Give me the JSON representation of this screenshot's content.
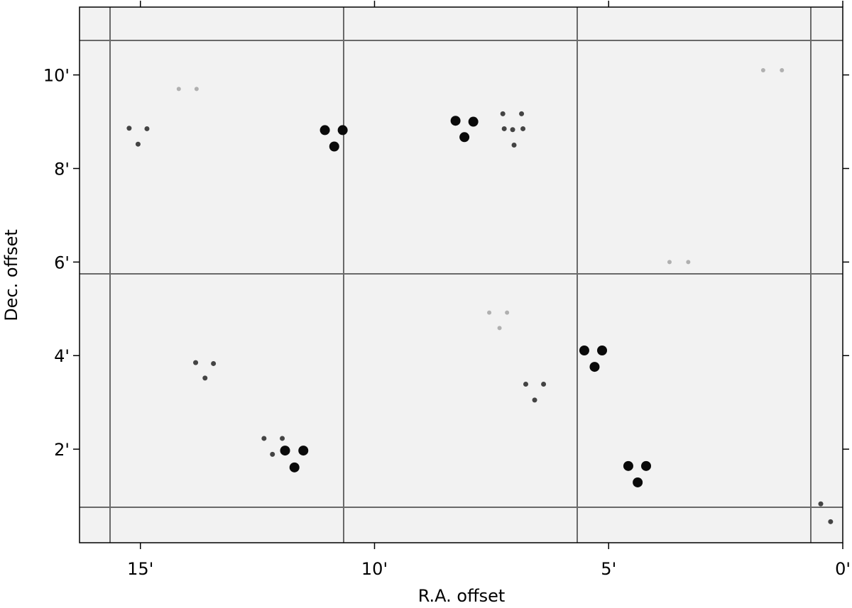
{
  "chart_data": {
    "type": "scatter",
    "x_label": "R.A. offset",
    "y_label": "Dec. offset",
    "xlim": [
      16.3,
      0
    ],
    "ylim": [
      0,
      11.45
    ],
    "xticks": [
      {
        "value": 15,
        "label": "15'"
      },
      {
        "value": 10,
        "label": "10'"
      },
      {
        "value": 5,
        "label": "5'"
      },
      {
        "value": 0,
        "label": "0'"
      }
    ],
    "yticks": [
      {
        "value": 2,
        "label": "2'"
      },
      {
        "value": 4,
        "label": "4'"
      },
      {
        "value": 6,
        "label": "6'"
      },
      {
        "value": 8,
        "label": "8'"
      },
      {
        "value": 10,
        "label": "10'"
      }
    ],
    "series": [
      {
        "color": "#0a0a0a",
        "marker_size": 7,
        "x": [
          11.06,
          10.68,
          10.86,
          8.27,
          7.89,
          8.08,
          11.91,
          11.52,
          11.71,
          4.58,
          4.2,
          4.38,
          5.52,
          5.14,
          5.3
        ],
        "values": [
          8.82,
          8.82,
          8.47,
          9.02,
          9.0,
          8.67,
          1.97,
          1.97,
          1.61,
          1.64,
          1.64,
          1.29,
          4.11,
          4.11,
          3.76
        ]
      },
      {
        "color": "#444444",
        "marker_size": 3.5,
        "x": [
          15.24,
          14.86,
          15.05,
          7.26,
          6.86,
          7.23,
          7.05,
          6.83,
          7.02,
          13.82,
          13.44,
          13.62,
          6.77,
          6.39,
          6.58,
          12.36,
          11.97,
          12.18,
          0.47,
          0.26
        ],
        "values": [
          8.86,
          8.85,
          8.52,
          9.17,
          9.17,
          8.85,
          8.83,
          8.85,
          8.5,
          3.85,
          3.83,
          3.52,
          3.39,
          3.39,
          3.05,
          2.23,
          2.23,
          1.89,
          0.83,
          0.45
        ]
      },
      {
        "color": "#b0b0b0",
        "marker_size": 3,
        "x": [
          7.55,
          7.17,
          7.33,
          14.18,
          13.8,
          3.7,
          3.3,
          1.7,
          1.3
        ],
        "values": [
          4.92,
          4.92,
          4.59,
          9.7,
          9.7,
          6.0,
          6.0,
          10.1,
          10.1
        ]
      }
    ]
  }
}
